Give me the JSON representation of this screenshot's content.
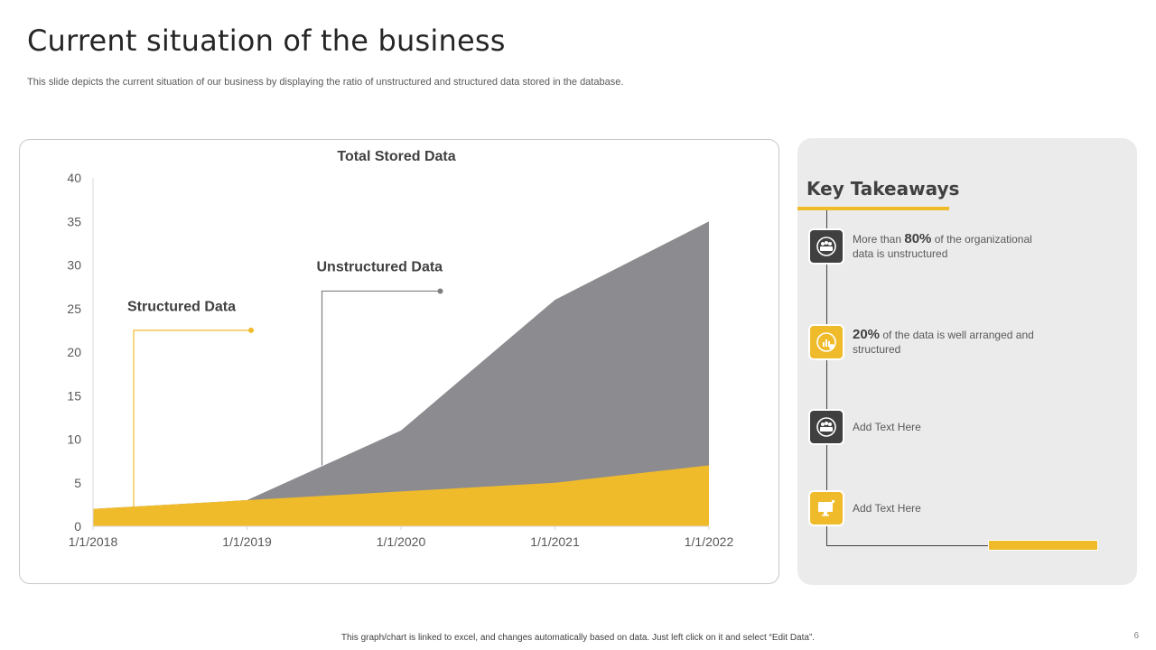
{
  "slide": {
    "title": "Current situation of the business",
    "subtitle": "This slide depicts the current situation of our business by displaying the ratio of unstructured and structured data stored in the database.",
    "footer": "This graph/chart is linked to excel, and changes automatically based on data. Just left click on it and select “Edit Data”.",
    "page_number": "6"
  },
  "chart_data": {
    "type": "area",
    "title": "Total Stored Data",
    "x": [
      "1/1/2018",
      "1/1/2019",
      "1/1/2020",
      "1/1/2021",
      "1/1/2022"
    ],
    "y_ticks": [
      "0",
      "5",
      "10",
      "15",
      "20",
      "25",
      "30",
      "35",
      "40"
    ],
    "ylim": [
      0,
      40
    ],
    "series": [
      {
        "name": "Structured Data",
        "values": [
          2,
          3,
          4,
          5,
          7
        ],
        "color": "#f0bb2b"
      },
      {
        "name": "Unstructured Data",
        "values": [
          2,
          3,
          11,
          26,
          35
        ],
        "color": "#8c8b8f"
      }
    ],
    "annotations": {
      "structured_label": "Structured Data",
      "unstructured_label": "Unstructured Data"
    },
    "grid": false,
    "legend": "callout labels"
  },
  "takeaways": {
    "title": "Key Takeaways",
    "accent_color": "#f0bb2b",
    "dark_color": "#404040",
    "items": [
      {
        "icon": "people-icon",
        "style": "dark",
        "pre": "More than ",
        "highlight": "80%",
        "post": " of the organizational data is unstructured"
      },
      {
        "icon": "gauge-icon",
        "style": "gold",
        "pre": "",
        "highlight": "20%",
        "post": " of the data is well arranged and structured"
      },
      {
        "icon": "people-icon",
        "style": "dark",
        "pre": "",
        "highlight": "",
        "post": "Add Text Here"
      },
      {
        "icon": "monitor-icon",
        "style": "gold",
        "pre": "",
        "highlight": "",
        "post": "Add Text Here"
      }
    ]
  }
}
